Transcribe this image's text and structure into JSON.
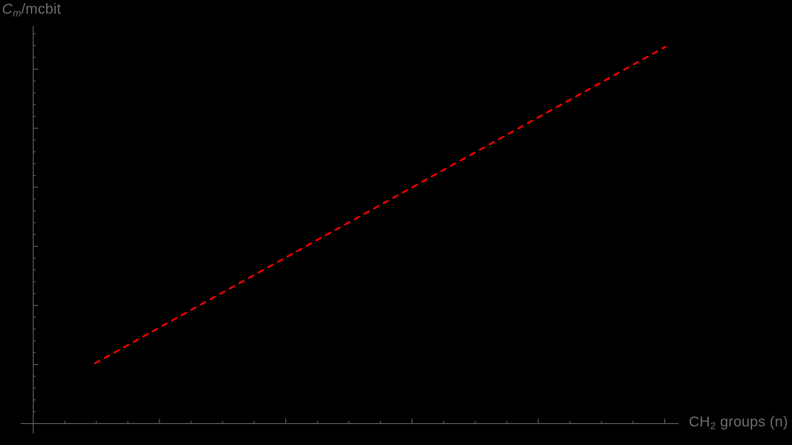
{
  "labels": {
    "y_axis": {
      "symbol": "C",
      "subscript": "m",
      "suffix": "/mcbit"
    },
    "x_axis": {
      "prefix": "CH",
      "subscript": "2",
      "suffix": " groups (n)"
    }
  },
  "chart_data": {
    "type": "line",
    "title": "",
    "xlabel": "CH₂ groups (n)",
    "ylabel": "Cₘ/mcbit",
    "background_color": "#000000",
    "axis_color": "#6e6e6e",
    "label_color": "#6e6e6e",
    "grid": false,
    "legend": "none",
    "tick_labels_visible": false,
    "x_axis": {
      "range": [
        0,
        20.4
      ],
      "minor_tick_step": 1,
      "major_tick_every": 4,
      "units_note": "estimated from unlabeled ticks; 1 unit = 1 minor tick"
    },
    "y_axis": {
      "range": [
        0,
        33.6
      ],
      "minor_tick_step": 1,
      "major_tick_every": 5,
      "units_note": "estimated from unlabeled ticks; 1 unit = 1 minor tick"
    },
    "series": [
      {
        "name": "dashed-linear-trend",
        "color": "#ff0000",
        "style": "dashed",
        "line_width": 2.6,
        "dash_pattern": [
          9.5,
          6.5
        ],
        "x": [
          1.94,
          20.05
        ],
        "y": [
          5.07,
          31.93
        ]
      }
    ]
  }
}
